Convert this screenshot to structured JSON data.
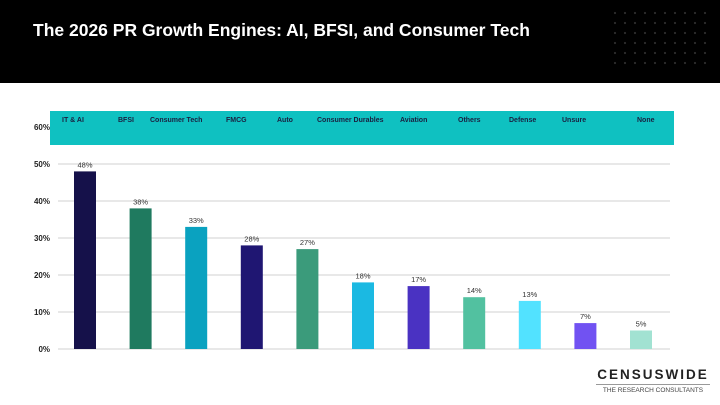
{
  "title": "The 2026 PR Growth Engines: AI, BFSI, and Consumer Tech",
  "logo": {
    "name": "CENSUSWIDE",
    "tagline": "THE RESEARCH CONSULTANTS"
  },
  "chart_data": {
    "type": "bar",
    "categories": [
      "IT & AI",
      "BFSI",
      "Consumer Tech",
      "FMCG",
      "Auto",
      "Consumer Durables",
      "Aviation",
      "Others",
      "Defense",
      "Unsure",
      "None"
    ],
    "values": [
      48,
      38,
      33,
      28,
      27,
      18,
      17,
      14,
      13,
      7,
      5
    ],
    "data_labels": [
      "48%",
      "38%",
      "33%",
      "28%",
      "27%",
      "18%",
      "17%",
      "14%",
      "13%",
      "7%",
      "5%"
    ],
    "colors": [
      "#15114a",
      "#1f7a5f",
      "#0aa2c0",
      "#1f1672",
      "#3b9b7b",
      "#1bb9e2",
      "#4a32c2",
      "#52c1a0",
      "#52e2ff",
      "#7152f2",
      "#a2e2d2"
    ],
    "ylim": [
      0,
      60
    ],
    "yticks": [
      "0%",
      "10%",
      "20%",
      "30%",
      "40%",
      "50%",
      "60%"
    ],
    "category_band_color": "#0fc1c1",
    "grid": true,
    "legend": "none"
  }
}
